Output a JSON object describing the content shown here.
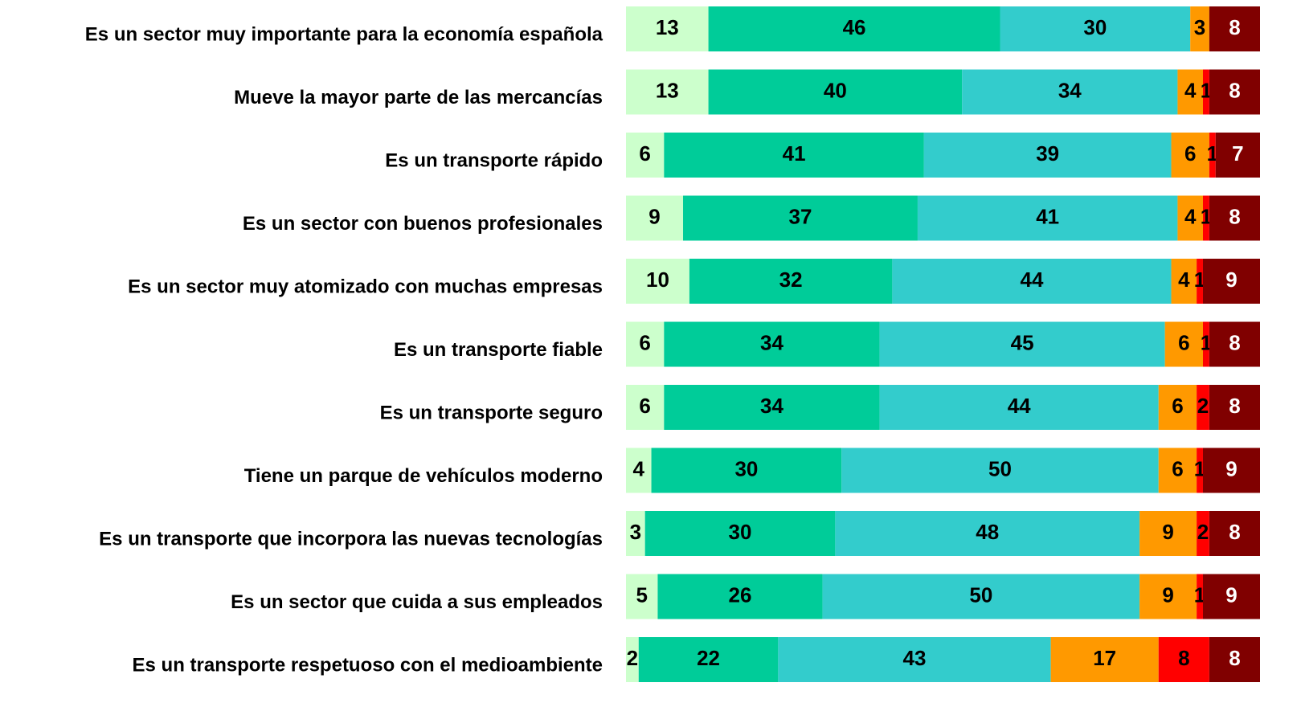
{
  "chart_data": {
    "type": "stacked-bar-horizontal",
    "categories": [
      "Es un sector muy importante para la economía española",
      "Mueve la mayor parte de las mercancías",
      "Es un transporte rápido",
      "Es un sector con buenos profesionales",
      "Es un sector muy atomizado con muchas empresas",
      "Es un transporte fiable",
      "Es un transporte seguro",
      "Tiene un parque de vehículos moderno",
      "Es un transporte que incorpora las nuevas tecnologías",
      "Es un sector que cuida a sus empleados",
      "Es un transporte respetuoso con el medioambiente"
    ],
    "series": [
      {
        "color": "#ccffcc",
        "label_color": "#000000",
        "values": [
          13,
          13,
          6,
          9,
          10,
          6,
          6,
          4,
          3,
          5,
          2
        ]
      },
      {
        "color": "#00cc99",
        "label_color": "#000000",
        "values": [
          46,
          40,
          41,
          37,
          32,
          34,
          34,
          30,
          30,
          26,
          22
        ]
      },
      {
        "color": "#33cccc",
        "label_color": "#000000",
        "values": [
          30,
          34,
          39,
          41,
          44,
          45,
          44,
          50,
          48,
          50,
          43
        ]
      },
      {
        "color": "#ff9900",
        "label_color": "#000000",
        "values": [
          3,
          4,
          6,
          4,
          4,
          6,
          6,
          6,
          9,
          9,
          17
        ]
      },
      {
        "color": "#ff0000",
        "label_color": "#000000",
        "values": [
          null,
          1,
          1,
          1,
          1,
          1,
          2,
          1,
          2,
          1,
          8
        ]
      },
      {
        "color": "#800000",
        "label_color": "#ffffff",
        "values": [
          8,
          8,
          7,
          8,
          9,
          8,
          8,
          9,
          8,
          9,
          8
        ]
      }
    ],
    "xlim": [
      0,
      100
    ]
  }
}
